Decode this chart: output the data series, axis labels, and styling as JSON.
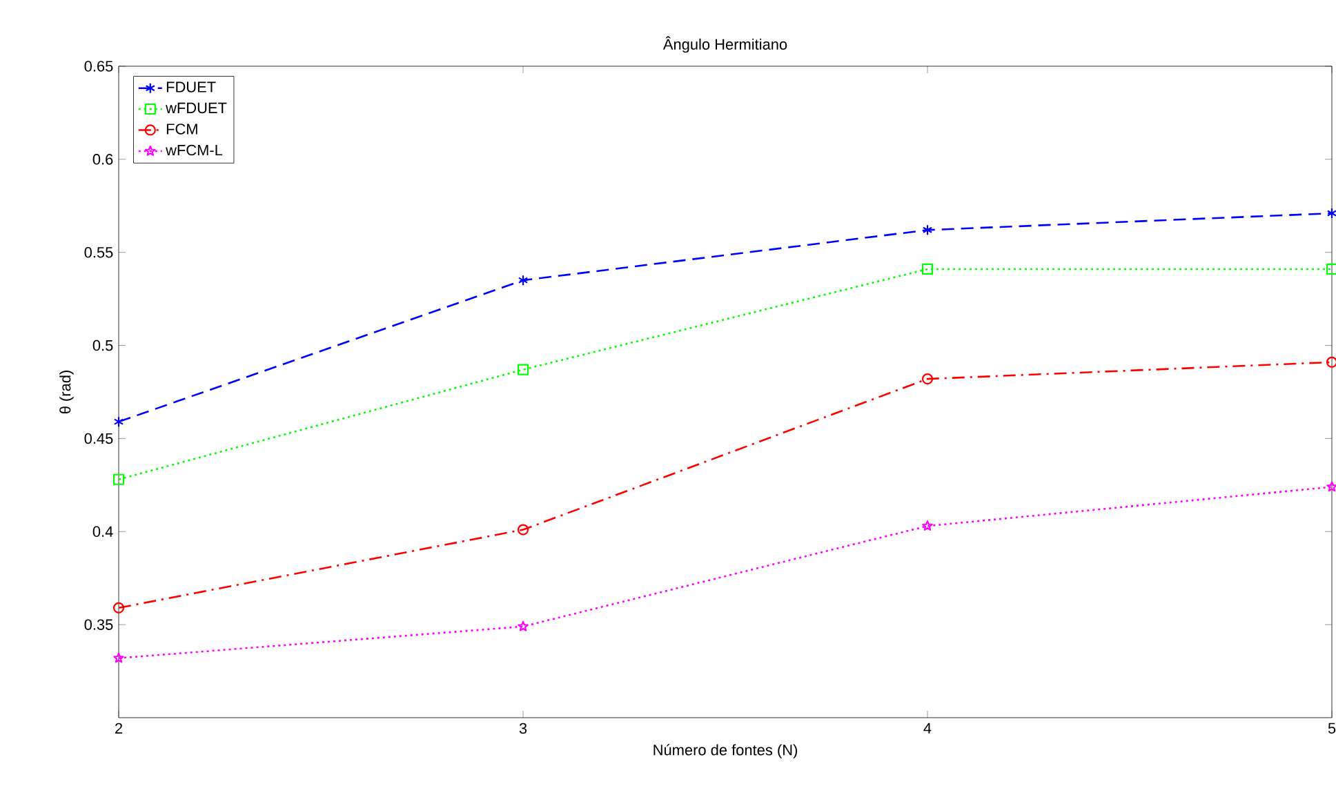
{
  "chart_data": {
    "type": "line",
    "title": "Ângulo Hermitiano",
    "xlabel": "Número de fontes (N)",
    "ylabel": "θ (rad)",
    "x": [
      2,
      3,
      4,
      5
    ],
    "xlim": [
      2,
      5
    ],
    "xticks": [
      2,
      3,
      4,
      5
    ],
    "ylim": [
      0.3,
      0.65
    ],
    "yticks": [
      0.35,
      0.4,
      0.45,
      0.5,
      0.55,
      0.6,
      0.65
    ],
    "legend": "top left",
    "grid": false,
    "series": [
      {
        "name": "FDUET",
        "color": "#0000ff",
        "values": [
          0.459,
          0.535,
          0.562,
          0.571
        ],
        "marker": "cross",
        "line_style": "dashed"
      },
      {
        "name": "wFDUET",
        "color": "#00ff00",
        "values": [
          0.428,
          0.487,
          0.541,
          0.541
        ],
        "marker": "square",
        "line_style": "dotted"
      },
      {
        "name": "FCM",
        "color": "#ff0000",
        "values": [
          0.359,
          0.401,
          0.482,
          0.491
        ],
        "marker": "circle",
        "line_style": "dashdot"
      },
      {
        "name": "wFCM-L",
        "color": "#ff00ff",
        "values": [
          0.332,
          0.349,
          0.403,
          0.424
        ],
        "marker": "star",
        "line_style": "dotted"
      }
    ]
  }
}
